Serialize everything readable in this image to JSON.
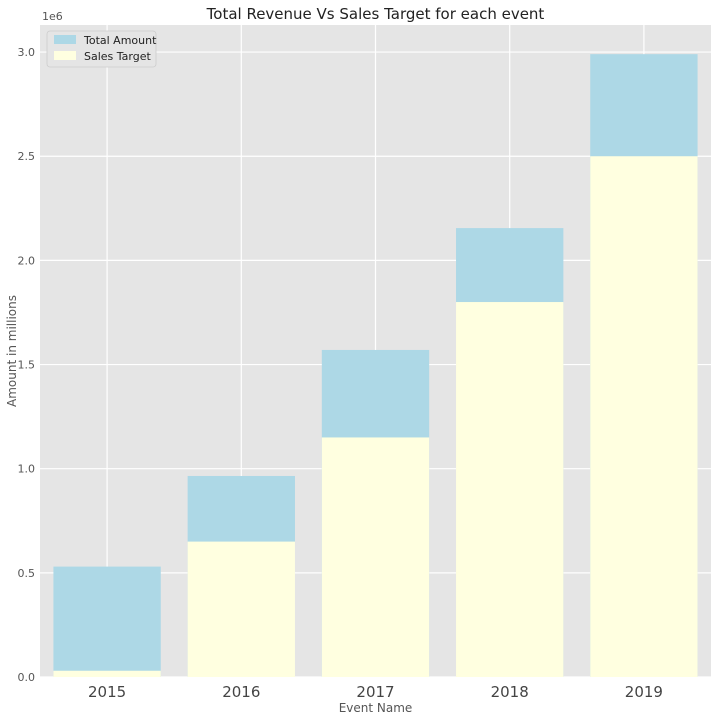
{
  "chart_data": {
    "type": "bar",
    "stacking": "overlay",
    "title": "Total Revenue Vs Sales Target for each event",
    "xlabel": "Event Name",
    "ylabel": "Amount in millions",
    "y_offset_label": "1e6",
    "ylim": [
      0,
      3130000
    ],
    "yticks": [
      {
        "value": 0,
        "label": "0.0"
      },
      {
        "value": 500000,
        "label": "0.5"
      },
      {
        "value": 1000000,
        "label": "1.0"
      },
      {
        "value": 1500000,
        "label": "1.5"
      },
      {
        "value": 2000000,
        "label": "2.0"
      },
      {
        "value": 2500000,
        "label": "2.5"
      },
      {
        "value": 3000000,
        "label": "3.0"
      }
    ],
    "categories": [
      "2015",
      "2016",
      "2017",
      "2018",
      "2019"
    ],
    "series": [
      {
        "name": "Total Amount",
        "color": "#add8e6",
        "values": [
          530000,
          965000,
          1570000,
          2155000,
          2990000
        ]
      },
      {
        "name": "Sales Target",
        "color": "#ffffe0",
        "values": [
          30000,
          650000,
          1150000,
          1800000,
          2500000
        ]
      }
    ],
    "grid": true,
    "background": "#e5e5e5",
    "legend_position": "top-left"
  }
}
